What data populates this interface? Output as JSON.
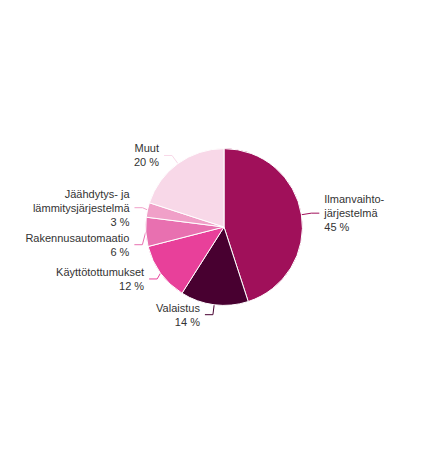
{
  "chart_data": {
    "type": "pie",
    "categories": [
      "Ilmanvaihto-\njärjestelmä\n45 %",
      "Valaistus\n14 %",
      "Käyttötottumukset\n12 %",
      "Rakennusautomaatio\n6 %",
      "Jäähdytys- ja\nlämmitysjärjestelmä\n3 %",
      "Muut\n20 %"
    ],
    "values": [
      45,
      14,
      12,
      6,
      3,
      20
    ],
    "colors": [
      "#A0105A",
      "#480030",
      "#E8409A",
      "#E870B0",
      "#F0A0C8",
      "#F8D8E8"
    ]
  }
}
